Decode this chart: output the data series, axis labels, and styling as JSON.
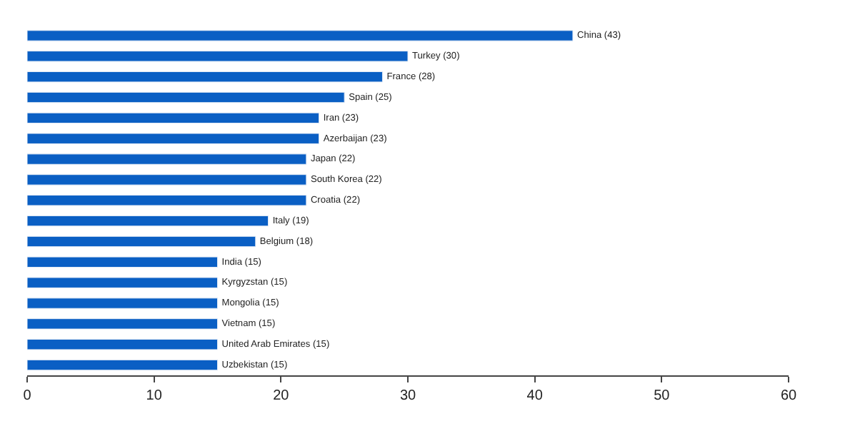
{
  "chart_data": {
    "type": "bar",
    "orientation": "horizontal",
    "categories": [
      "China (43)",
      "Turkey (30)",
      "France (28)",
      "Spain (25)",
      "Iran (23)",
      "Azerbaijan (23)",
      "Japan (22)",
      "South Korea (22)",
      "Croatia (22)",
      "Italy (19)",
      "Belgium (18)",
      "India (15)",
      "Kyrgyzstan (15)",
      "Mongolia (15)",
      "Vietnam (15)",
      "United Arab Emirates (15)",
      "Uzbekistan (15)"
    ],
    "values": [
      43,
      30,
      28,
      25,
      23,
      23,
      22,
      22,
      22,
      19,
      18,
      15,
      15,
      15,
      15,
      15,
      15
    ],
    "color": "#0a5fc4",
    "xlim": [
      0,
      60
    ],
    "xticks": [
      0,
      10,
      20,
      30,
      40,
      50,
      60
    ],
    "tick_labels": "x"
  }
}
